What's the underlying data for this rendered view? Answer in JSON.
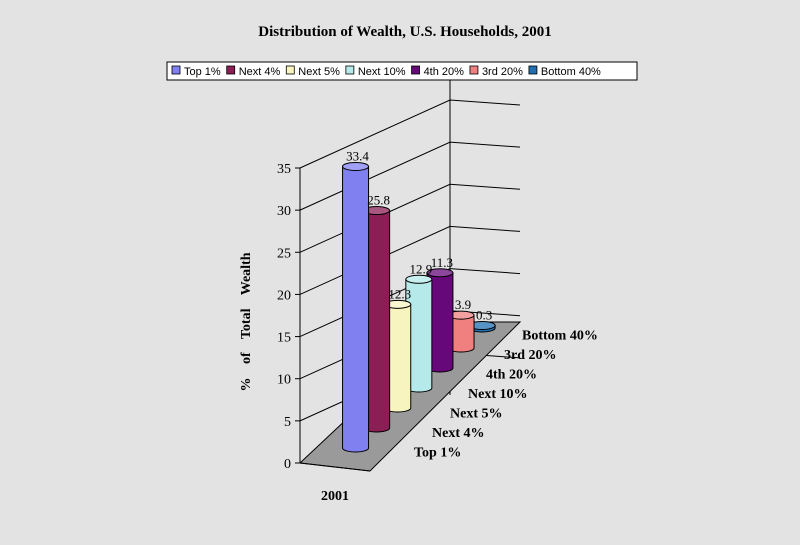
{
  "chart_data": {
    "type": "bar",
    "title": "Distribution of Wealth, U.S. Households, 2001",
    "xlabel": "2001",
    "ylabel": "% of Total Wealth",
    "ylim": [
      0,
      35
    ],
    "yticks": [
      0,
      5,
      10,
      15,
      20,
      25,
      30,
      35
    ],
    "grid": true,
    "legend_position": "top",
    "categories": [
      "2001"
    ],
    "series": [
      {
        "name": "Top 1%",
        "values": [
          33.4
        ],
        "color": "#8080f0",
        "depth_label": "Top 1%"
      },
      {
        "name": "Next 4%",
        "values": [
          25.8
        ],
        "color": "#8a1f56",
        "depth_label": "Next 4%"
      },
      {
        "name": "Next 5%",
        "values": [
          12.3
        ],
        "color": "#f7f4bf",
        "depth_label": "Next 5%"
      },
      {
        "name": "Next 10%",
        "values": [
          12.9
        ],
        "color": "#b6eaea",
        "depth_label": "Next 10%"
      },
      {
        "name": "4th 20%",
        "values": [
          11.3
        ],
        "color": "#66087a",
        "depth_label": "4th 20%"
      },
      {
        "name": "3rd 20%",
        "values": [
          3.9
        ],
        "color": "#f08080",
        "depth_label": "3rd 20%"
      },
      {
        "name": "Bottom 40%",
        "values": [
          0.3
        ],
        "color": "#1f6fb0",
        "depth_label": "Bottom 40%"
      }
    ],
    "data_labels": [
      "33.4",
      "25.8",
      "12.3",
      "12.9",
      "11.3",
      "3.9",
      "0.3"
    ]
  }
}
